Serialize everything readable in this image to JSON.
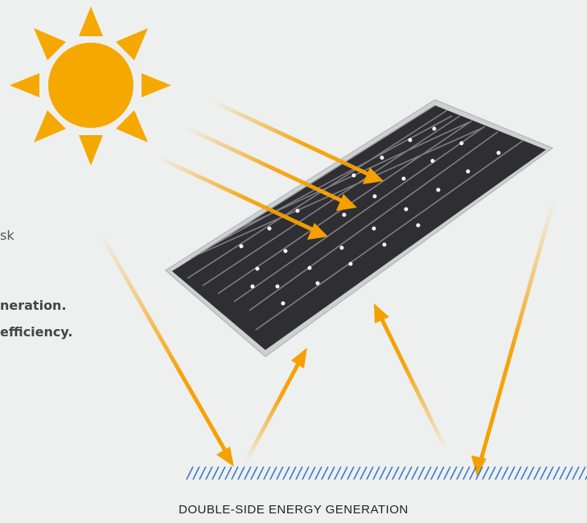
{
  "text_fragments": {
    "line1": "sk",
    "line2": "neration.",
    "line3": "efficiency."
  },
  "caption": "DOUBLE-SIDE ENERGY GENERATION",
  "colors": {
    "background": "#eef0ef",
    "sun": "#f5a800",
    "arrow": "#f5a000",
    "panel_cell": "#2e2e31",
    "panel_frame": "#dcdcdc",
    "ground_hatch": "#3f79c9"
  },
  "icons": [
    "sun-icon",
    "solar-panel-icon",
    "light-arrow-icon",
    "ground-hatch-icon"
  ]
}
